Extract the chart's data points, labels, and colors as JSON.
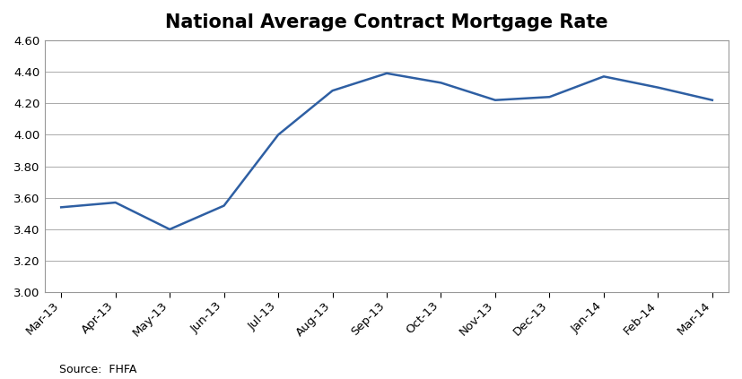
{
  "title": "National Average Contract Mortgage Rate",
  "source_text": "Source:  FHFA",
  "categories": [
    "Mar-13",
    "Apr-13",
    "May-13",
    "Jun-13",
    "Jul-13",
    "Aug-13",
    "Sep-13",
    "Oct-13",
    "Nov-13",
    "Dec-13",
    "Jan-14",
    "Feb-14",
    "Mar-14"
  ],
  "values": [
    3.54,
    3.57,
    3.4,
    3.55,
    4.0,
    4.28,
    4.39,
    4.33,
    4.22,
    4.24,
    4.37,
    4.3,
    4.22
  ],
  "ylim": [
    3.0,
    4.6
  ],
  "yticks": [
    3.0,
    3.2,
    3.4,
    3.6,
    3.8,
    4.0,
    4.2,
    4.4,
    4.6
  ],
  "line_color": "#2E5FA3",
  "line_width": 1.8,
  "bg_color": "#ffffff",
  "plot_bg_color": "#ffffff",
  "grid_color": "#AAAAAA",
  "spine_color": "#999999",
  "title_fontsize": 15,
  "title_fontweight": "bold",
  "tick_fontsize": 9.5,
  "source_fontsize": 9
}
